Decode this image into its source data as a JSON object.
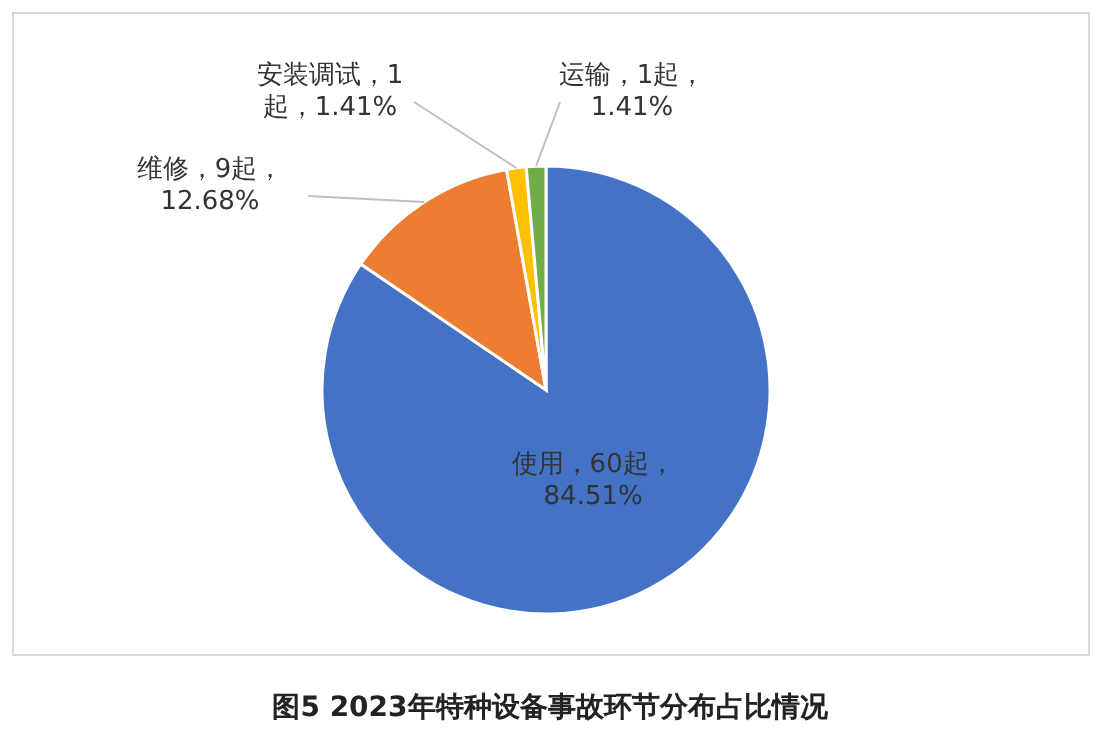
{
  "chart_data": {
    "type": "pie",
    "title": "图5 2023年特种设备事故环节分布占比情况",
    "categories": [
      "使用",
      "维修",
      "安装调试",
      "运输"
    ],
    "values": [
      60,
      9,
      1,
      1
    ],
    "value_labels": [
      "60起，84.51%",
      "9起，12.68%",
      "1起，1.41%",
      "1起，1.41%"
    ],
    "colors": [
      "#4472c4",
      "#ed7d31",
      "#ffc000",
      "#70ad47"
    ],
    "legend": false
  }
}
